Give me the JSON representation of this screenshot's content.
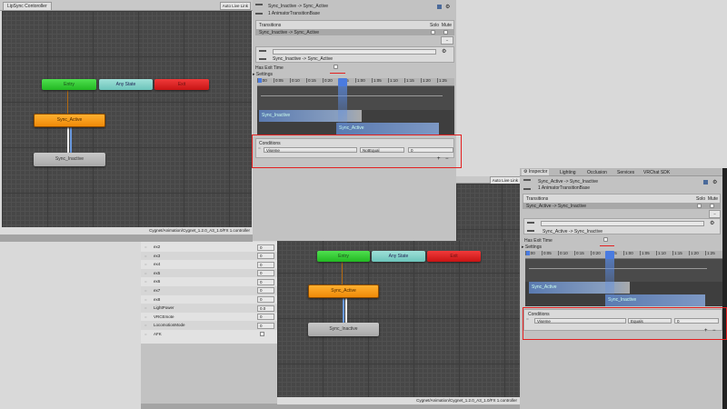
{
  "graph1": {
    "tab": "LipSync Contoroller",
    "live_link": "Auto Live Link",
    "path": "Cygnet/Animation/Cygnet_1.2.0_A3_1.0/FX 1.controller",
    "nodes": {
      "entry": "Entry",
      "any": "Any State",
      "exit": "Exit",
      "active": "Sync_Active",
      "inactive": "Sync_Inactive"
    }
  },
  "graph2": {
    "live_link": "Auto Live Link",
    "path": "Cygnet/Animation/Cygnet_1.2.0_A3_1.0/FX 1.controller",
    "nodes": {
      "entry": "Entry",
      "any": "Any State",
      "exit": "Exit",
      "active": "Sync_Active",
      "inactive": "Sync_Inactive"
    }
  },
  "inspector1": {
    "title": "Sync_Inactive -> Sync_Active",
    "subtitle": "1 AnimatorTransitionBase",
    "transitions_label": "Transitions",
    "solo": "Solo",
    "mute": "Mute",
    "transition_row": "Sync_Inactive -> Sync_Active",
    "sub_label": "Sync_Inactive -> Sync_Active",
    "has_exit_time": "Has Exit Time",
    "has_exit_time_checked": false,
    "settings": "Settings",
    "ticks": [
      "0:00",
      "0:05",
      "0:10",
      "0:15",
      "0:20",
      "0:25",
      "1:00",
      "1:05",
      "1:10",
      "1:15",
      "1:20",
      "1:25"
    ],
    "bar_a": "Sync_Inactive",
    "bar_b": "Sync_Active",
    "conditions": "Conditions",
    "cond_param": "Viseme",
    "cond_mode": "NotEqual",
    "cond_value": "0",
    "plus": "+",
    "minus": "−"
  },
  "inspector2": {
    "tabs": [
      "Inspector",
      "Lighting",
      "Occlusion",
      "Services",
      "VRChat SDK"
    ],
    "title": "Sync_Active -> Sync_Inactive",
    "subtitle": "1 AnimatorTransitionBase",
    "transitions_label": "Transitions",
    "solo": "Solo",
    "mute": "Mute",
    "transition_row": "Sync_Active -> Sync_Inactive",
    "sub_label": "Sync_Active -> Sync_Inactive",
    "has_exit_time": "Has Exit Time",
    "has_exit_time_checked": false,
    "settings": "Settings",
    "ticks": [
      "0:00",
      "0:05",
      "0:10",
      "0:15",
      "0:20",
      "0:25",
      "1:00",
      "1:05",
      "1:10",
      "1:15",
      "1:20",
      "1:25"
    ],
    "bar_a": "Sync_Active",
    "bar_b": "Sync_Inactive",
    "conditions": "Conditions",
    "cond_param": "Viseme",
    "cond_mode": "Equals",
    "cond_value": "0",
    "plus": "+",
    "minus": "−"
  },
  "parameters": [
    {
      "name": "ex2",
      "value": "0"
    },
    {
      "name": "ex3",
      "value": "0"
    },
    {
      "name": "ex4",
      "value": "0"
    },
    {
      "name": "ex5",
      "value": "0"
    },
    {
      "name": "ex6",
      "value": "0"
    },
    {
      "name": "ex7",
      "value": "0"
    },
    {
      "name": "ex8",
      "value": "0"
    },
    {
      "name": "LightPower",
      "value": "0.0"
    },
    {
      "name": "VRCEmote",
      "value": "0"
    },
    {
      "name": "LocomotionMode",
      "value": "0"
    },
    {
      "name": "AFK",
      "value": null,
      "checkbox": false
    }
  ]
}
